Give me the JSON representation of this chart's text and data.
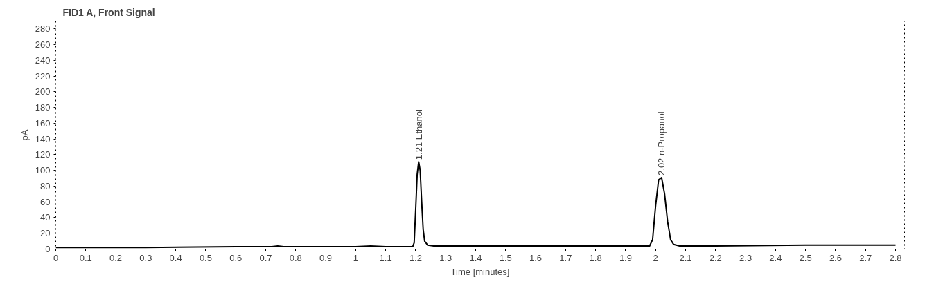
{
  "chart_data": {
    "type": "line",
    "title": "FID1 A, Front Signal",
    "xlabel": "Time [minutes]",
    "ylabel": "pA",
    "x": [
      0,
      0.3,
      0.6,
      0.7,
      0.72,
      0.74,
      0.76,
      0.8,
      1.0,
      1.05,
      1.1,
      1.19,
      1.195,
      1.2,
      1.205,
      1.21,
      1.215,
      1.22,
      1.225,
      1.23,
      1.24,
      1.26,
      1.4,
      1.6,
      1.8,
      1.98,
      1.99,
      2.0,
      2.01,
      2.02,
      2.03,
      2.04,
      2.05,
      2.06,
      2.08,
      2.2,
      2.5,
      2.8
    ],
    "series": [
      {
        "color": "#000000",
        "values": [
          2,
          2,
          3,
          3,
          3,
          4,
          3,
          3,
          3,
          4,
          3,
          3,
          8,
          50,
          95,
          111,
          100,
          60,
          25,
          10,
          5,
          4,
          4,
          4,
          4,
          4,
          12,
          55,
          88,
          91,
          70,
          35,
          12,
          6,
          4,
          4,
          5,
          5
        ]
      }
    ],
    "xlim": [
      0,
      2.83
    ],
    "ylim": [
      0,
      290
    ],
    "xticks": [
      0,
      0.1,
      0.2,
      0.3,
      0.4,
      0.5,
      0.6,
      0.7,
      0.8,
      0.9,
      1,
      1.1,
      1.2,
      1.3,
      1.4,
      1.5,
      1.6,
      1.7,
      1.8,
      1.9,
      2,
      2.1,
      2.2,
      2.3,
      2.4,
      2.5,
      2.6,
      2.7,
      2.8
    ],
    "yticks": [
      0,
      20,
      40,
      60,
      80,
      100,
      120,
      140,
      160,
      180,
      200,
      220,
      240,
      260,
      280
    ],
    "annotations": [
      {
        "text": "1.21 Ethanol",
        "x": 1.21,
        "y": 111
      },
      {
        "text": "2.02 n-Propanol",
        "x": 2.02,
        "y": 91
      }
    ],
    "grid": false,
    "marker": "none",
    "line_style": "solid"
  }
}
